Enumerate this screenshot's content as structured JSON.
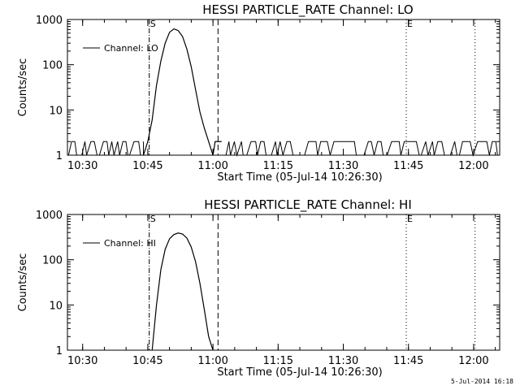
{
  "stamp": "5-Jul-2014 16:18",
  "chart_data": [
    {
      "type": "line",
      "title": "HESSI PARTICLE_RATE Channel: LO",
      "xlabel": "Start Time (05-Jul-14 10:26:30)",
      "ylabel": "Counts/sec",
      "yscale": "log",
      "ylim": [
        1,
        1000
      ],
      "xlim": [
        "10:26:30",
        "12:06:00"
      ],
      "x_ticks": [
        "10:30",
        "10:45",
        "11:00",
        "11:15",
        "11:30",
        "11:45",
        "12:00"
      ],
      "y_ticks": [
        "1",
        "10",
        "100",
        "1000"
      ],
      "legend": {
        "position": "top-left",
        "entries": [
          "Channel: LO"
        ]
      },
      "markers": [
        {
          "label": "S",
          "time": "10:45:20",
          "style": "dashdot"
        },
        {
          "label": "",
          "time": "11:01:10",
          "style": "dashed"
        },
        {
          "label": "E",
          "time": "11:44:30",
          "style": "dotted"
        },
        {
          "label": "",
          "time": "12:00:20",
          "style": "dotted"
        }
      ],
      "series": [
        {
          "name": "Channel: LO",
          "x": [
            "10:44:00",
            "10:45:00",
            "10:46:00",
            "10:47:00",
            "10:48:00",
            "10:49:00",
            "10:50:00",
            "10:51:00",
            "10:52:00",
            "10:53:00",
            "10:54:00",
            "10:55:00",
            "10:56:00",
            "10:57:00",
            "10:58:00",
            "10:59:00",
            "11:00:00",
            "11:00:30",
            "11:01:00",
            "11:02:00"
          ],
          "y": [
            1,
            2,
            6,
            35,
            120,
            300,
            520,
            620,
            570,
            420,
            220,
            90,
            28,
            9,
            4,
            2,
            1,
            2,
            2,
            2
          ]
        }
      ],
      "noise": {
        "description_free": true,
        "min": 1,
        "max": 2
      }
    },
    {
      "type": "line",
      "title": "HESSI PARTICLE_RATE Channel: HI",
      "xlabel": "Start Time (05-Jul-14 10:26:30)",
      "ylabel": "Counts/sec",
      "yscale": "log",
      "ylim": [
        1,
        1000
      ],
      "xlim": [
        "10:26:30",
        "12:06:00"
      ],
      "x_ticks": [
        "10:30",
        "10:45",
        "11:00",
        "11:15",
        "11:30",
        "11:45",
        "12:00"
      ],
      "y_ticks": [
        "1",
        "10",
        "100",
        "1000"
      ],
      "legend": {
        "position": "top-left",
        "entries": [
          "Channel: HI"
        ]
      },
      "markers": [
        {
          "label": "S",
          "time": "10:45:20",
          "style": "dashdot"
        },
        {
          "label": "",
          "time": "11:01:10",
          "style": "dashed"
        },
        {
          "label": "E",
          "time": "11:44:30",
          "style": "dotted"
        },
        {
          "label": "",
          "time": "12:00:20",
          "style": "dotted"
        }
      ],
      "series": [
        {
          "name": "Channel: HI",
          "x": [
            "10:46:00",
            "10:47:00",
            "10:48:00",
            "10:49:00",
            "10:50:00",
            "10:51:00",
            "10:52:00",
            "10:53:00",
            "10:54:00",
            "10:55:00",
            "10:56:00",
            "10:57:00",
            "10:58:00",
            "10:59:00",
            "11:00:00"
          ],
          "y": [
            1,
            10,
            60,
            170,
            290,
            360,
            390,
            370,
            300,
            190,
            90,
            30,
            8,
            2,
            1
          ]
        }
      ]
    }
  ]
}
